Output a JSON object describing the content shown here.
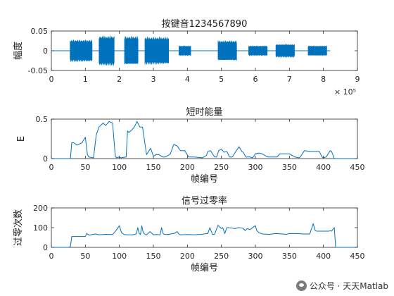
{
  "chart_data": [
    {
      "type": "line",
      "title": "按键音1234567890",
      "xlabel": "",
      "ylabel": "幅度",
      "xlim": [
        0,
        900000
      ],
      "ylim": [
        -0.05,
        0.05
      ],
      "xticks": [
        0,
        100000,
        200000,
        300000,
        400000,
        500000,
        600000,
        700000,
        800000,
        900000
      ],
      "xticklabels": [
        "0",
        "1",
        "2",
        "3",
        "4",
        "5",
        "6",
        "7",
        "8",
        "9"
      ],
      "yticks": [
        -0.05,
        0,
        0.05
      ],
      "yticklabels": [
        "-0.05",
        "0",
        "0.05"
      ],
      "exponent_label": "× 10⁵",
      "color": "#0072BD",
      "segments": [
        {
          "x_start": 55000,
          "x_end": 120000,
          "amp": 0.028
        },
        {
          "x_start": 140000,
          "x_end": 185000,
          "amp": 0.038
        },
        {
          "x_start": 215000,
          "x_end": 255000,
          "amp": 0.037
        },
        {
          "x_start": 275000,
          "x_end": 345000,
          "amp": 0.035
        },
        {
          "x_start": 375000,
          "x_end": 410000,
          "amp": 0.013
        },
        {
          "x_start": 490000,
          "x_end": 545000,
          "amp": 0.026
        },
        {
          "x_start": 580000,
          "x_end": 635000,
          "amp": 0.013
        },
        {
          "x_start": 660000,
          "x_end": 715000,
          "amp": 0.017
        },
        {
          "x_start": 755000,
          "x_end": 810000,
          "amp": 0.013
        }
      ]
    },
    {
      "type": "line",
      "title": "短时能量",
      "xlabel": "帧编号",
      "ylabel": "E",
      "xlim": [
        0,
        450
      ],
      "ylim": [
        0,
        0.5
      ],
      "xticks": [
        0,
        50,
        100,
        150,
        200,
        250,
        300,
        350,
        400,
        450
      ],
      "yticks": [
        0,
        0.5
      ],
      "yticklabels": [
        "0",
        "0.5"
      ],
      "color": "#0072BD",
      "x": [
        0,
        28,
        30,
        33,
        38,
        45,
        50,
        53,
        55,
        62,
        66,
        70,
        76,
        80,
        85,
        90,
        94,
        96,
        100,
        102,
        110,
        112,
        114,
        118,
        122,
        126,
        130,
        134,
        140,
        146,
        150,
        154,
        158,
        164,
        168,
        175,
        180,
        185,
        188,
        190,
        196,
        202,
        210,
        222,
        228,
        230,
        234,
        240,
        243,
        246,
        250,
        254,
        258,
        262,
        266,
        272,
        276,
        280,
        282,
        286,
        292,
        296,
        300,
        305,
        310,
        312,
        318,
        324,
        332,
        336,
        342,
        350,
        358,
        364,
        366,
        372,
        380,
        388,
        394,
        398,
        400,
        404,
        410,
        412,
        416,
        450
      ],
      "y": [
        0,
        0,
        0.2,
        0.2,
        0.17,
        0.2,
        0.27,
        0.05,
        0.02,
        0.01,
        0.3,
        0.4,
        0.45,
        0.42,
        0.47,
        0.45,
        0.03,
        0.01,
        0.02,
        0.01,
        0.02,
        0.35,
        0.33,
        0.36,
        0.4,
        0.47,
        0.4,
        0.4,
        0.05,
        0.13,
        0.03,
        0.05,
        0.05,
        0.02,
        0.02,
        0.06,
        0.18,
        0.16,
        0.12,
        0.1,
        0.1,
        0.02,
        0.02,
        0.01,
        0.04,
        0.09,
        0.1,
        0.02,
        0.02,
        0.1,
        0.12,
        0.08,
        0.09,
        0.02,
        0.02,
        0.1,
        0.15,
        0.09,
        0.08,
        0.02,
        0.02,
        0.01,
        0.06,
        0.07,
        0.06,
        0.05,
        0.02,
        0.02,
        0.02,
        0.06,
        0.06,
        0.06,
        0.02,
        0.01,
        0.02,
        0.1,
        0.09,
        0.09,
        0.09,
        0.02,
        0.01,
        0.02,
        0.1,
        0.09,
        0,
        0
      ]
    },
    {
      "type": "line",
      "title": "信号过零率",
      "xlabel": "帧编号",
      "ylabel": "过零次数",
      "xlim": [
        0,
        450
      ],
      "ylim": [
        0,
        200
      ],
      "xticks": [
        0,
        50,
        100,
        150,
        200,
        250,
        300,
        350,
        400,
        450
      ],
      "yticks": [
        0,
        100,
        200
      ],
      "yticklabels": [
        "0",
        "100",
        "200"
      ],
      "color": "#0072BD",
      "x": [
        0,
        26,
        28,
        30,
        40,
        50,
        52,
        56,
        60,
        65,
        70,
        80,
        90,
        95,
        100,
        103,
        107,
        110,
        115,
        120,
        125,
        127,
        129,
        131,
        133,
        135,
        138,
        140,
        145,
        150,
        155,
        160,
        162,
        164,
        166,
        170,
        180,
        185,
        188,
        190,
        200,
        210,
        220,
        230,
        233,
        237,
        240,
        245,
        250,
        252,
        255,
        258,
        260,
        265,
        270,
        275,
        280,
        282,
        285,
        288,
        292,
        300,
        302,
        305,
        310,
        320,
        330,
        340,
        345,
        350,
        360,
        370,
        380,
        385,
        388,
        390,
        395,
        400,
        405,
        408,
        410,
        412,
        416,
        418,
        450
      ],
      "y": [
        0,
        0,
        5,
        55,
        55,
        55,
        70,
        62,
        65,
        68,
        64,
        66,
        65,
        85,
        110,
        75,
        65,
        64,
        64,
        64,
        68,
        100,
        72,
        65,
        110,
        75,
        65,
        64,
        80,
        64,
        65,
        64,
        100,
        72,
        66,
        65,
        70,
        80,
        65,
        64,
        65,
        64,
        66,
        70,
        100,
        65,
        66,
        112,
        95,
        100,
        70,
        100,
        100,
        98,
        95,
        100,
        98,
        96,
        85,
        95,
        90,
        110,
        85,
        75,
        68,
        66,
        70,
        68,
        66,
        70,
        70,
        68,
        68,
        120,
        85,
        82,
        82,
        82,
        82,
        82,
        85,
        82,
        100,
        0,
        0
      ]
    }
  ],
  "watermark": {
    "text": "公众号 · 天天Matlab"
  }
}
